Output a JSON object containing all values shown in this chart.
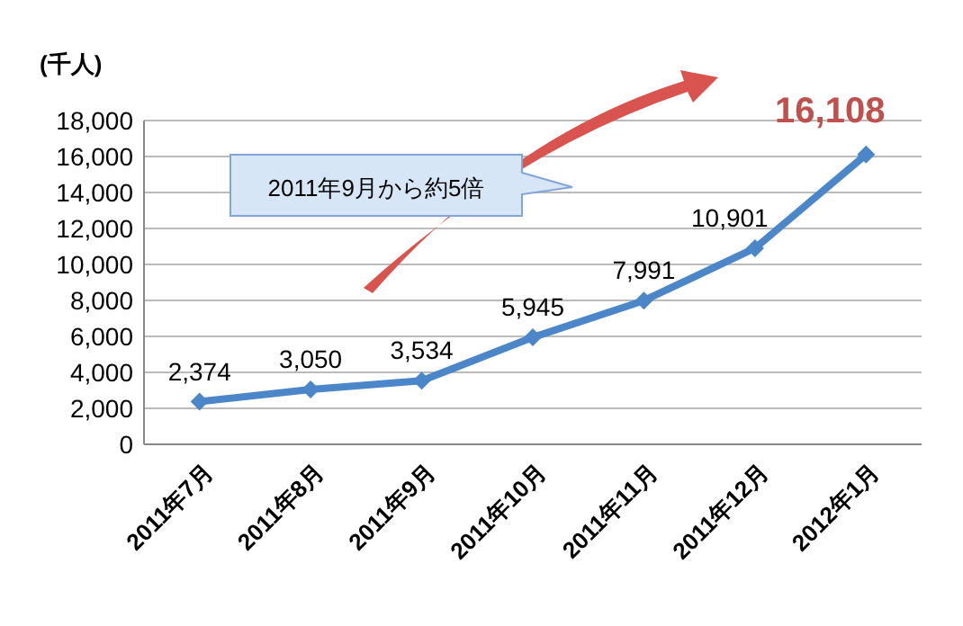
{
  "chart_data": {
    "type": "line",
    "ylabel": "(千人)",
    "categories": [
      "2011年7月",
      "2011年8月",
      "2011年9月",
      "2011年10月",
      "2011年11月",
      "2011年12月",
      "2012年1月"
    ],
    "series": [
      {
        "color": "#4a86c8",
        "values": [
          2374,
          3050,
          3534,
          5945,
          7991,
          10901,
          16108
        ],
        "value_labels": [
          "2,374",
          "3,050",
          "3,534",
          "5,945",
          "7,991",
          "10,901",
          "16,108"
        ]
      }
    ],
    "ylim": [
      0,
      18000
    ],
    "yticks": [
      0,
      {
        "value": 2000,
        "label": "2,000"
      },
      {
        "value": 4000,
        "label": "4,000"
      },
      {
        "value": 6000,
        "label": "6,000"
      },
      {
        "value": 8000,
        "label": "8,000"
      },
      {
        "value": 10000,
        "label": "10,000"
      },
      {
        "value": 12000,
        "label": "12,000"
      },
      {
        "value": 14000,
        "label": "14,000"
      },
      {
        "value": 16000,
        "label": "16,000"
      },
      {
        "value": 18000,
        "label": "18,000"
      }
    ],
    "grid": "y",
    "marker": "diamond",
    "line_style": "solid",
    "annotations": [
      "2011年9月から約5倍"
    ]
  }
}
